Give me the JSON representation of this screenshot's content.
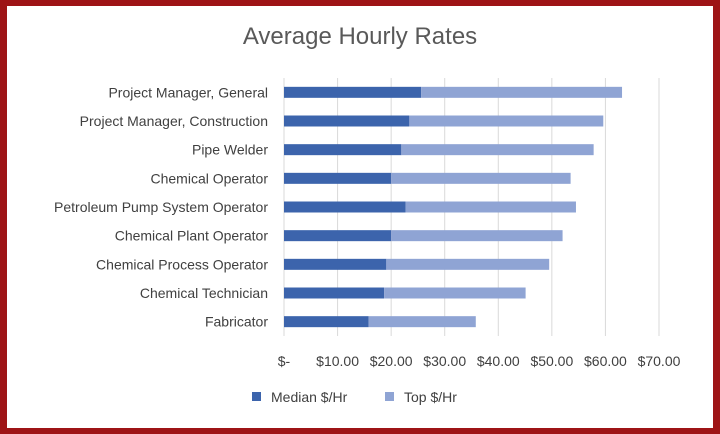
{
  "chart_data": {
    "type": "bar",
    "orientation": "horizontal",
    "stacked": true,
    "title": "Average Hourly Rates",
    "xlabel": "",
    "ylabel": "",
    "categories": [
      "Project Manager, General",
      "Project Manager, Construction",
      "Pipe Welder",
      "Chemical Operator",
      "Petroleum Pump System Operator",
      "Chemical Plant Operator",
      "Chemical Process Operator",
      "Chemical Technician",
      "Fabricator"
    ],
    "series": [
      {
        "name": "Median $/Hr",
        "color": "#3c64ac",
        "values": [
          25.6,
          23.4,
          21.9,
          20.0,
          22.7,
          20.0,
          19.1,
          18.7,
          15.8
        ]
      },
      {
        "name": "Top $/Hr",
        "color": "#8fa4d4",
        "values": [
          37.5,
          36.2,
          35.9,
          33.5,
          31.8,
          32.0,
          30.4,
          26.4,
          20.0
        ]
      }
    ],
    "xlim": [
      0,
      70
    ],
    "ticks": [
      0,
      10,
      20,
      30,
      40,
      50,
      60,
      70
    ],
    "tick_labels": [
      "$-",
      "$10.00",
      "$20.00",
      "$30.00",
      "$40.00",
      "$50.00",
      "$60.00",
      "$70.00"
    ],
    "grid": true,
    "legend_position": "bottom"
  }
}
